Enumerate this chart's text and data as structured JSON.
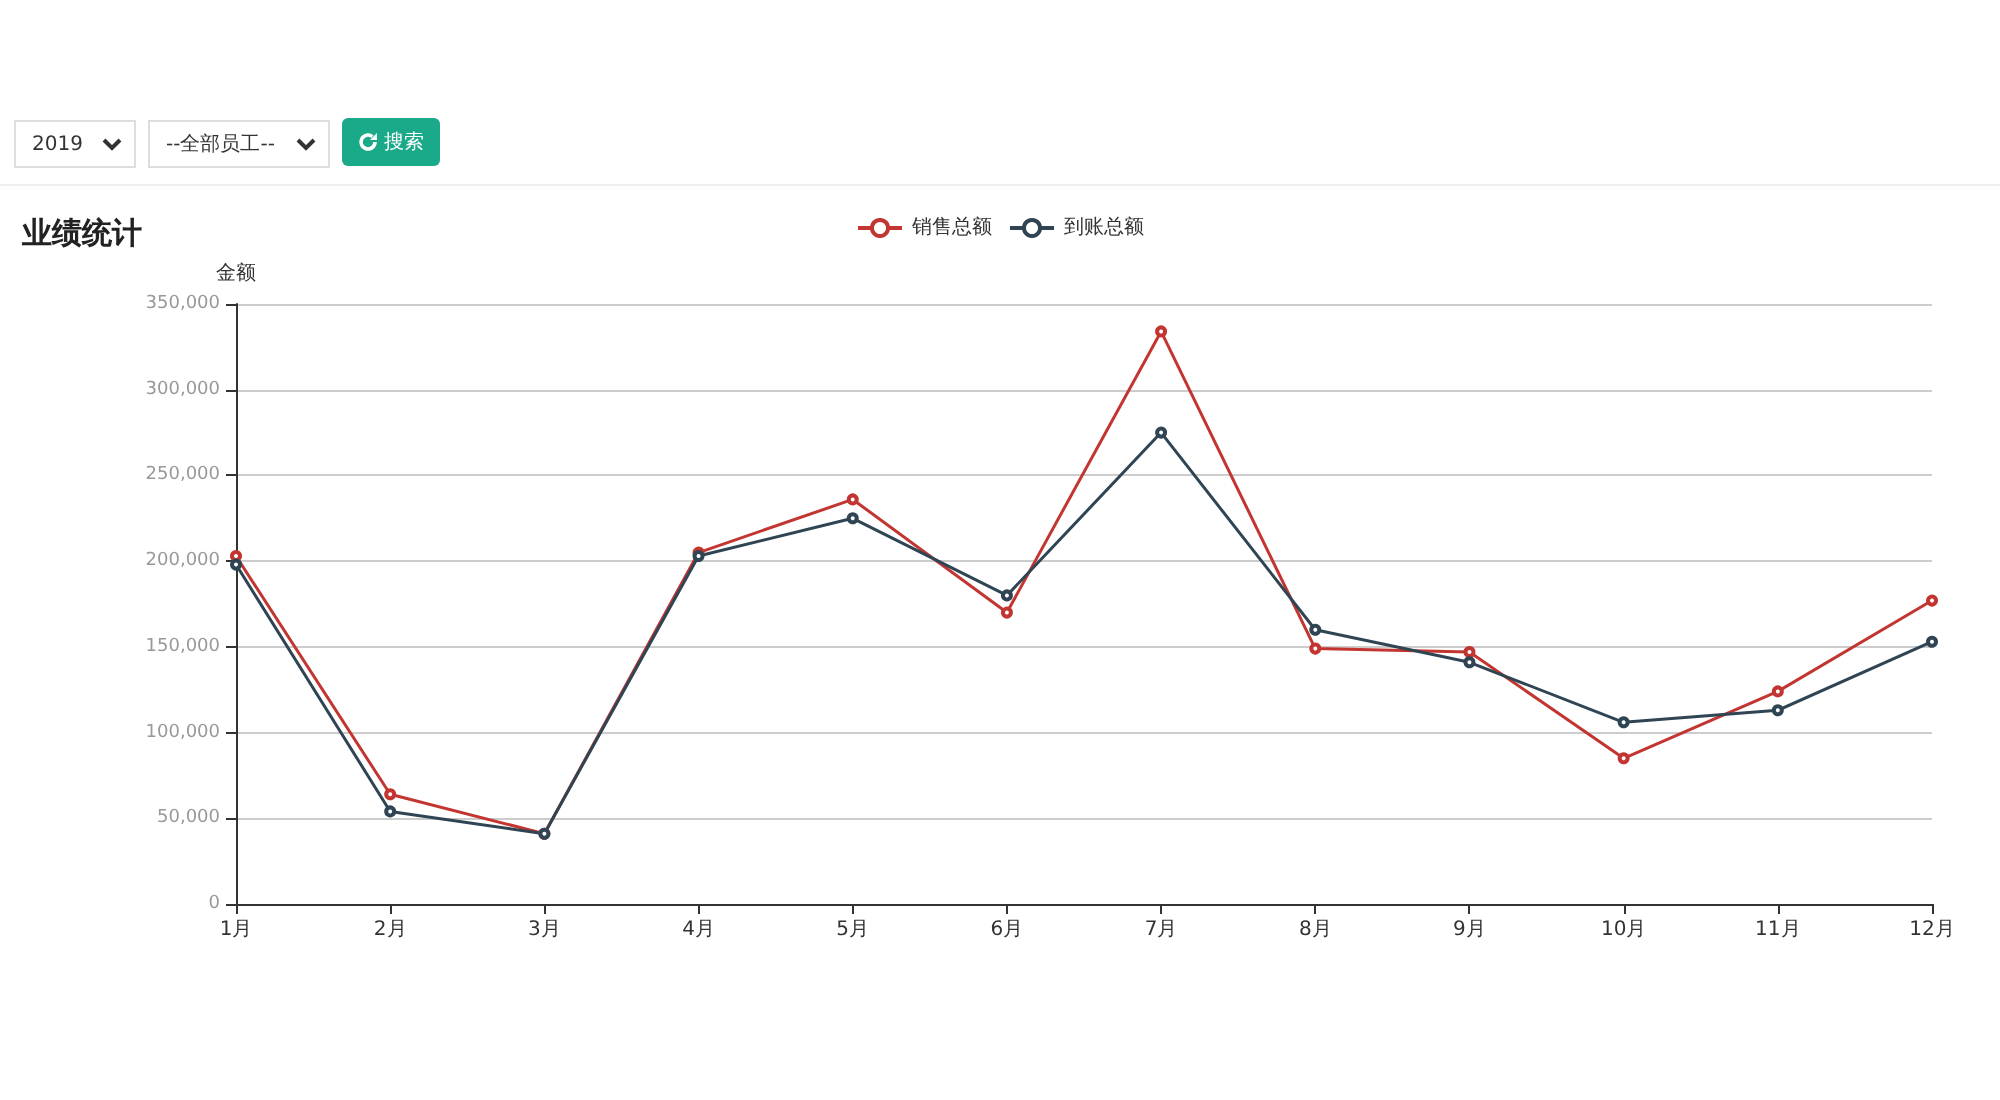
{
  "chart_data": {
    "type": "line",
    "title": "业绩统计",
    "ylabel": "金额",
    "annotations": [
      "2019",
      "--全部员工--",
      "搜索"
    ],
    "categories": [
      "1月",
      "2月",
      "3月",
      "4月",
      "5月",
      "6月",
      "7月",
      "8月",
      "9月",
      "10月",
      "11月",
      "12月"
    ],
    "series": [
      {
        "name": "销售总额",
        "color": "#c23531",
        "values": [
          203000,
          64000,
          41000,
          205000,
          236000,
          170000,
          334000,
          149000,
          147000,
          85000,
          124000,
          177000
        ]
      },
      {
        "name": "到账总额",
        "color": "#2f4554",
        "values": [
          198000,
          54000,
          41000,
          203000,
          225000,
          180000,
          275000,
          160000,
          141000,
          106000,
          113000,
          153000
        ]
      }
    ],
    "ylim": [
      0,
      350000
    ],
    "yticks": [
      0,
      {
        "value": 50000,
        "label": "50,000"
      },
      {
        "value": 100000,
        "label": "100,000"
      },
      {
        "value": 150000,
        "label": "150,000"
      },
      {
        "value": 200000,
        "label": "200,000"
      },
      {
        "value": 250000,
        "label": "250,000"
      },
      {
        "value": 300000,
        "label": "300,000"
      },
      {
        "value": 350000,
        "label": "350,000"
      }
    ],
    "grid": "y",
    "legend": "top",
    "marker": "circle",
    "line_style": "solid"
  }
}
